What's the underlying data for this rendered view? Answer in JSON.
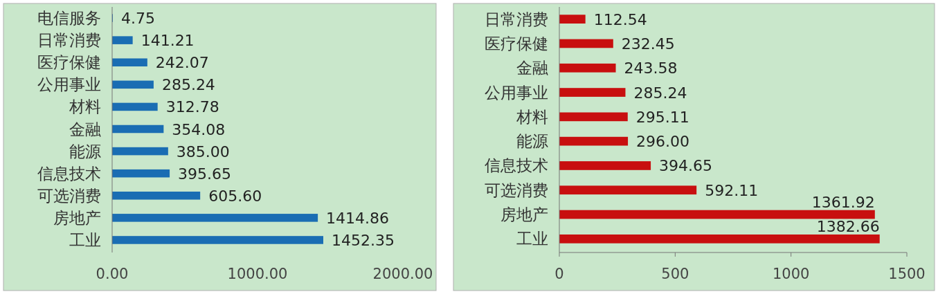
{
  "chart_data": [
    {
      "type": "bar",
      "orientation": "horizontal",
      "categories": [
        "电信服务",
        "日常消费",
        "医疗保健",
        "公用事业",
        "材料",
        "金融",
        "能源",
        "信息技术",
        "可选消费",
        "房地产",
        "工业"
      ],
      "values": [
        4.75,
        141.21,
        242.07,
        285.24,
        312.78,
        354.08,
        385.0,
        395.65,
        605.6,
        1414.86,
        1452.35
      ],
      "value_labels": [
        "4.75",
        "141.21",
        "242.07",
        "285.24",
        "312.78",
        "354.08",
        "385.00",
        "395.65",
        "605.60",
        "1414.86",
        "1452.35"
      ],
      "color": "#1a6db3",
      "xlim": [
        0,
        2000
      ],
      "xticks": [
        {
          "value": 0,
          "label": "0.00"
        },
        {
          "value": 1000,
          "label": "1000.00"
        },
        {
          "value": 2000,
          "label": "2000.00"
        }
      ],
      "grid": false
    },
    {
      "type": "bar",
      "orientation": "horizontal",
      "categories": [
        "日常消费",
        "医疗保健",
        "金融",
        "公用事业",
        "材料",
        "能源",
        "信息技术",
        "可选消费",
        "房地产",
        "工业"
      ],
      "values": [
        112.54,
        232.45,
        243.58,
        285.24,
        295.11,
        296.0,
        394.65,
        592.11,
        1361.92,
        1382.66
      ],
      "value_labels": [
        "112.54",
        "232.45",
        "243.58",
        "285.24",
        "295.11",
        "296.00",
        "394.65",
        "592.11",
        "1361.92",
        "1382.66"
      ],
      "color": "#c80f0f",
      "xlim": [
        0,
        1500
      ],
      "xticks": [
        0,
        500,
        1000,
        1500
      ],
      "grid": false
    }
  ]
}
